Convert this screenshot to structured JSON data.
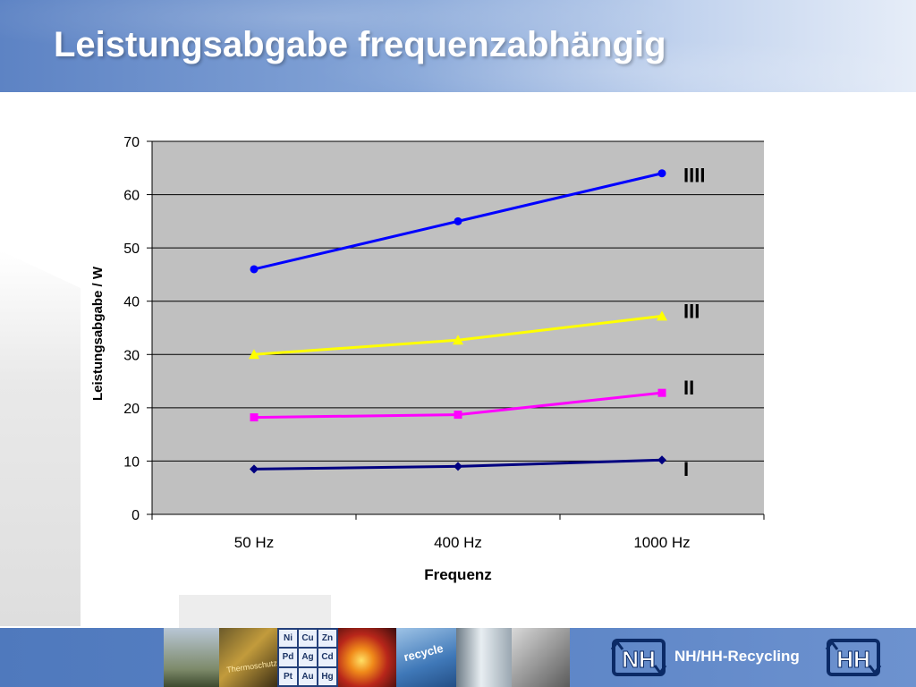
{
  "slide": {
    "title": "Leistungsabgabe frequenzabhängig"
  },
  "footer": {
    "brand_text": "NH/HH-Recycling",
    "logo_left_text": "NH",
    "logo_right_text": "HH",
    "photo_labels": {
      "p2": "Thermoschutz",
      "p5": "recycle",
      "periodic_cells": [
        "Ni",
        "Cu",
        "Zn",
        "Pd",
        "Ag",
        "Cd",
        "Pt",
        "Au",
        "Hg"
      ]
    }
  },
  "colors": {
    "header_start": "#5d83c4",
    "plot_area": "#c0c0c0",
    "series_I": "#000080",
    "series_II": "#ff00ff",
    "series_III": "#ffff00",
    "series_IIII": "#0000ff"
  },
  "chart_data": {
    "type": "line",
    "title": "",
    "xlabel": "Frequenz",
    "ylabel": "Leistungsabgabe / W",
    "categories": [
      "50 Hz",
      "400 Hz",
      "1000 Hz"
    ],
    "ylim": [
      0,
      70
    ],
    "yticks": [
      0,
      10,
      20,
      30,
      40,
      50,
      60,
      70
    ],
    "grid": true,
    "legend": "inline labels at right end of each line",
    "series": [
      {
        "name": "I",
        "marker": "diamond",
        "color": "#000080",
        "values": [
          8.5,
          9.0,
          10.2
        ]
      },
      {
        "name": "II",
        "marker": "square",
        "color": "#ff00ff",
        "values": [
          18.2,
          18.7,
          22.8
        ]
      },
      {
        "name": "III",
        "marker": "triangle",
        "color": "#ffff00",
        "values": [
          30.0,
          32.7,
          37.2
        ]
      },
      {
        "name": "IIII",
        "marker": "circle",
        "color": "#0000ff",
        "values": [
          46.0,
          55.0,
          64.0
        ]
      }
    ]
  }
}
